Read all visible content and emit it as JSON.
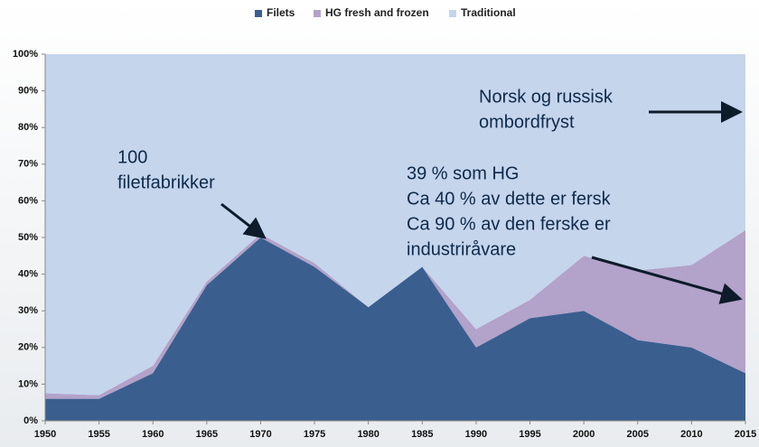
{
  "chart_data": {
    "type": "stacked-area",
    "categories": [
      "1950",
      "1955",
      "1960",
      "1965",
      "1970",
      "1975",
      "1980",
      "1985",
      "1990",
      "1995",
      "2000",
      "2005",
      "2010",
      "2015"
    ],
    "series": [
      {
        "name": "Filets",
        "color": "#3a5f8f",
        "values": [
          6,
          6,
          13,
          37,
          50,
          42,
          31,
          42,
          20,
          28,
          30,
          22,
          20,
          13
        ]
      },
      {
        "name": "HG fresh and frozen",
        "color": "#b3a2c9",
        "values": [
          1.5,
          1,
          2,
          1,
          1,
          1,
          0,
          0,
          5,
          5,
          15,
          19,
          22.5,
          39
        ]
      },
      {
        "name": "Traditional",
        "color": "#c5d5ec",
        "values": [
          92.5,
          93,
          85,
          62,
          49,
          57,
          69,
          58,
          75,
          67,
          55,
          59,
          57.5,
          48
        ]
      }
    ],
    "ylim": [
      0,
      100
    ],
    "yticks": [
      {
        "value": 0,
        "label": "0%"
      },
      {
        "value": 10,
        "label": "10%"
      },
      {
        "value": 20,
        "label": "20%"
      },
      {
        "value": 30,
        "label": "30%"
      },
      {
        "value": 40,
        "label": "40%"
      },
      {
        "value": 50,
        "label": "50%"
      },
      {
        "value": 60,
        "label": "60%"
      },
      {
        "value": 70,
        "label": "70%"
      },
      {
        "value": 80,
        "label": "80%"
      },
      {
        "value": 90,
        "label": "90%"
      },
      {
        "value": 100,
        "label": "100%"
      }
    ],
    "legend": "top",
    "annotations": [
      {
        "lines": [
          "100",
          "filetfabrikker"
        ]
      },
      {
        "lines": [
          "Norsk og russisk",
          "ombordfryst"
        ]
      },
      {
        "lines": [
          "39 % som HG",
          "Ca 40 % av dette er fersk",
          "Ca 90 % av den ferske er",
          "industriråvare"
        ]
      }
    ]
  }
}
